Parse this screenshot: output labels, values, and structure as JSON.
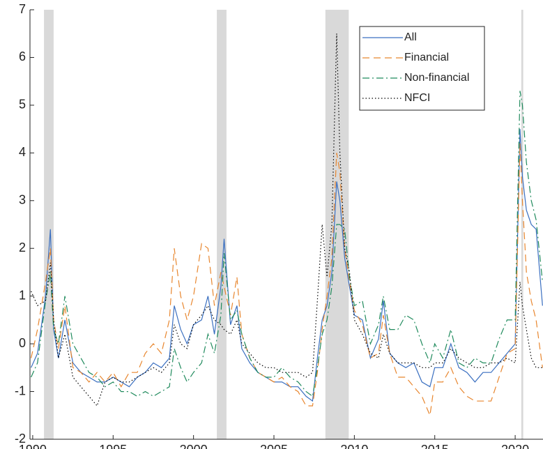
{
  "chart_data": {
    "type": "line",
    "x": [
      1989.9,
      1990.3,
      1990.8,
      1991.1,
      1991.3,
      1991.6,
      1992.0,
      1992.5,
      1993.0,
      1993.5,
      1994.0,
      1994.5,
      1995.0,
      1995.5,
      1996.0,
      1996.5,
      1997.0,
      1997.5,
      1998.0,
      1998.5,
      1998.8,
      1999.2,
      1999.6,
      2000.0,
      2000.5,
      2000.9,
      2001.3,
      2001.7,
      2001.9,
      2002.3,
      2002.7,
      2003.0,
      2003.5,
      2004.0,
      2004.5,
      2005.0,
      2005.5,
      2006.0,
      2006.5,
      2007.0,
      2007.4,
      2007.7,
      2008.0,
      2008.3,
      2008.6,
      2008.9,
      2009.1,
      2009.4,
      2009.7,
      2010.0,
      2010.5,
      2011.0,
      2011.5,
      2011.8,
      2012.2,
      2012.7,
      2013.2,
      2013.7,
      2014.2,
      2014.7,
      2015.0,
      2015.5,
      2016.0,
      2016.5,
      2017.0,
      2017.5,
      2018.0,
      2018.5,
      2019.0,
      2019.5,
      2020.0,
      2020.3,
      2020.45,
      2020.7,
      2021.0,
      2021.3,
      2021.7
    ],
    "series": [
      {
        "name": "All",
        "color": "#3a6fc0",
        "dash": "",
        "values": [
          -0.5,
          -0.2,
          1.0,
          2.4,
          0.3,
          -0.3,
          0.5,
          -0.4,
          -0.6,
          -0.7,
          -0.8,
          -0.8,
          -0.7,
          -0.8,
          -0.9,
          -0.7,
          -0.6,
          -0.4,
          -0.5,
          -0.3,
          0.8,
          0.3,
          0.0,
          0.4,
          0.5,
          1.0,
          0.2,
          1.2,
          2.2,
          0.4,
          0.8,
          -0.1,
          -0.4,
          -0.6,
          -0.7,
          -0.8,
          -0.8,
          -0.9,
          -0.9,
          -1.1,
          -1.2,
          -0.3,
          0.5,
          0.8,
          1.5,
          3.4,
          3.0,
          1.8,
          1.2,
          0.6,
          0.5,
          -0.3,
          0.1,
          0.9,
          -0.2,
          -0.4,
          -0.5,
          -0.4,
          -0.8,
          -0.9,
          -0.5,
          -0.5,
          0.0,
          -0.5,
          -0.6,
          -0.8,
          -0.6,
          -0.6,
          -0.4,
          -0.2,
          0.0,
          4.5,
          3.5,
          2.8,
          2.5,
          2.4,
          0.8
        ]
      },
      {
        "name": "Financial",
        "color": "#e8862e",
        "dash": "10 6",
        "values": [
          -0.3,
          0.3,
          1.3,
          2.0,
          0.5,
          -0.1,
          0.8,
          -0.5,
          -0.6,
          -0.8,
          -0.6,
          -0.8,
          -0.6,
          -0.9,
          -0.6,
          -0.6,
          -0.2,
          0.0,
          -0.2,
          0.5,
          2.0,
          1.0,
          0.5,
          1.0,
          2.1,
          2.0,
          0.8,
          1.5,
          1.2,
          0.6,
          1.4,
          0.2,
          -0.3,
          -0.6,
          -0.7,
          -0.8,
          -0.7,
          -0.9,
          -1.0,
          -1.3,
          -1.3,
          -0.6,
          0.3,
          1.0,
          1.8,
          4.0,
          3.6,
          2.0,
          1.3,
          0.7,
          0.4,
          -0.3,
          -0.2,
          0.6,
          -0.2,
          -0.7,
          -0.7,
          -0.9,
          -1.1,
          -1.5,
          -0.8,
          -0.8,
          -0.5,
          -0.9,
          -1.1,
          -1.2,
          -1.2,
          -1.2,
          -0.7,
          -0.2,
          -0.1,
          4.2,
          3.0,
          1.5,
          0.9,
          0.5,
          -0.5
        ]
      },
      {
        "name": "Non-financial",
        "color": "#1f8a5c",
        "dash": "10 4 2 4",
        "values": [
          -0.7,
          -0.4,
          0.9,
          1.5,
          0.3,
          0.0,
          1.0,
          0.0,
          -0.3,
          -0.6,
          -0.7,
          -0.9,
          -0.8,
          -1.0,
          -1.0,
          -1.1,
          -1.0,
          -1.1,
          -1.0,
          -0.9,
          -0.1,
          -0.5,
          -0.8,
          -0.6,
          -0.4,
          0.2,
          -0.2,
          0.6,
          1.9,
          0.5,
          0.7,
          0.2,
          -0.3,
          -0.6,
          -0.7,
          -0.7,
          -0.5,
          -0.7,
          -0.8,
          -1.0,
          -1.1,
          -0.5,
          0.2,
          0.5,
          1.2,
          2.5,
          2.5,
          2.4,
          1.4,
          0.8,
          0.9,
          0.0,
          0.4,
          1.0,
          0.3,
          0.3,
          0.6,
          0.5,
          0.0,
          -0.4,
          0.0,
          -0.3,
          0.3,
          -0.4,
          -0.5,
          -0.3,
          -0.4,
          -0.4,
          0.1,
          0.5,
          0.5,
          5.3,
          5.0,
          3.8,
          3.0,
          2.6,
          1.3
        ]
      },
      {
        "name": "NFCI",
        "color": "#000000",
        "dash": "1.5 3",
        "values": [
          1.1,
          0.8,
          0.9,
          1.7,
          0.5,
          -0.3,
          0.2,
          -0.7,
          -0.9,
          -1.1,
          -1.3,
          -0.8,
          -0.7,
          -0.8,
          -0.8,
          -0.7,
          -0.6,
          -0.5,
          -0.6,
          -0.4,
          0.4,
          0.0,
          -0.1,
          0.4,
          0.6,
          0.8,
          0.5,
          0.4,
          0.3,
          0.2,
          0.5,
          0.0,
          -0.2,
          -0.4,
          -0.5,
          -0.5,
          -0.6,
          -0.6,
          -0.6,
          -0.7,
          -0.6,
          0.9,
          2.5,
          1.4,
          2.5,
          6.5,
          4.0,
          2.0,
          1.5,
          0.5,
          0.2,
          -0.2,
          -0.3,
          0.2,
          -0.2,
          -0.4,
          -0.4,
          -0.4,
          -0.5,
          -0.5,
          -0.4,
          -0.4,
          -0.1,
          -0.3,
          -0.4,
          -0.5,
          -0.5,
          -0.4,
          -0.4,
          -0.3,
          -0.4,
          1.3,
          0.8,
          0.3,
          -0.3,
          -0.5,
          -0.5
        ]
      }
    ],
    "recessions": [
      [
        1990.7,
        1991.3
      ],
      [
        2001.45,
        2002.05
      ],
      [
        2008.2,
        2009.65
      ],
      [
        2020.38,
        2020.5
      ]
    ],
    "xlim": [
      1989.83,
      2021.73
    ],
    "xticks": [
      1990,
      1995,
      2000,
      2005,
      2010,
      2015,
      2020
    ],
    "ylim": [
      -2,
      7
    ],
    "yticks": [
      -2,
      -1,
      0,
      1,
      2,
      3,
      4,
      5,
      6,
      7
    ],
    "legend_loc": "northeast"
  }
}
